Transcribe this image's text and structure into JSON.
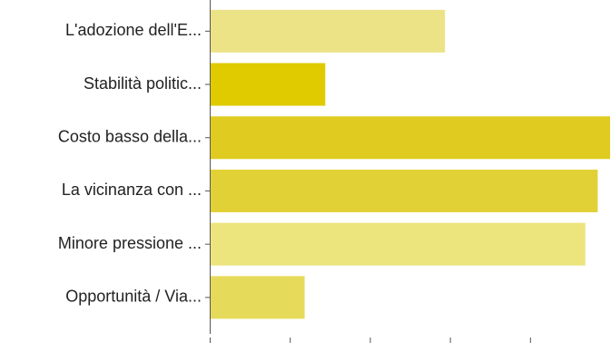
{
  "chart_data": {
    "type": "bar",
    "orientation": "horizontal",
    "categories": [
      "L'adozione dell'E...",
      "Stabilità politic...",
      "Costo basso della...",
      "La vicinanza con ...",
      "Minore pressione ...",
      "Opportunità / Via..."
    ],
    "values": [
      57,
      28,
      97,
      94,
      91,
      23
    ],
    "bar_colors": [
      "#ece387",
      "#dfcb00",
      "#e0cb20",
      "#e2d136",
      "#ece47c",
      "#e6da5a"
    ],
    "xlim": [
      0,
      97
    ],
    "x_tick_count": 5,
    "grid": false,
    "legend": "none"
  }
}
